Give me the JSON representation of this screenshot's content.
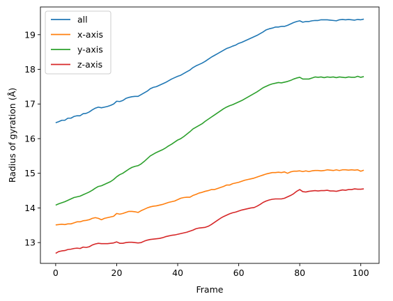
{
  "chart_data": {
    "type": "line",
    "xlabel": "Frame",
    "ylabel": "Radius of gyration (Å)",
    "xlim": [
      -5,
      106
    ],
    "ylim": [
      12.4,
      19.8
    ],
    "xticks": [
      0,
      20,
      40,
      60,
      80,
      100
    ],
    "yticks": [
      13,
      14,
      15,
      16,
      17,
      18,
      19
    ],
    "grid": false,
    "legend_position": "top-left",
    "x": [
      0,
      1,
      2,
      3,
      4,
      5,
      6,
      7,
      8,
      9,
      10,
      11,
      12,
      13,
      14,
      15,
      16,
      17,
      18,
      19,
      20,
      21,
      22,
      23,
      24,
      25,
      26,
      27,
      28,
      29,
      30,
      31,
      32,
      33,
      34,
      35,
      36,
      37,
      38,
      39,
      40,
      41,
      42,
      43,
      44,
      45,
      46,
      47,
      48,
      49,
      50,
      51,
      52,
      53,
      54,
      55,
      56,
      57,
      58,
      59,
      60,
      61,
      62,
      63,
      64,
      65,
      66,
      67,
      68,
      69,
      70,
      71,
      72,
      73,
      74,
      75,
      76,
      77,
      78,
      79,
      80,
      81,
      82,
      83,
      84,
      85,
      86,
      87,
      88,
      89,
      90,
      91,
      92,
      93,
      94,
      95,
      96,
      97,
      98,
      99,
      100,
      101
    ],
    "series": [
      {
        "name": "all",
        "color": "#1f77b4",
        "values": [
          16.46,
          16.49,
          16.53,
          16.53,
          16.59,
          16.59,
          16.64,
          16.66,
          16.66,
          16.72,
          16.73,
          16.77,
          16.83,
          16.88,
          16.91,
          16.89,
          16.91,
          16.93,
          16.96,
          17.0,
          17.08,
          17.07,
          17.1,
          17.16,
          17.19,
          17.21,
          17.22,
          17.22,
          17.27,
          17.32,
          17.37,
          17.44,
          17.48,
          17.5,
          17.54,
          17.58,
          17.62,
          17.67,
          17.72,
          17.76,
          17.8,
          17.83,
          17.88,
          17.93,
          17.98,
          18.05,
          18.1,
          18.14,
          18.18,
          18.23,
          18.29,
          18.35,
          18.4,
          18.45,
          18.5,
          18.55,
          18.6,
          18.63,
          18.67,
          18.7,
          18.75,
          18.78,
          18.82,
          18.86,
          18.9,
          18.94,
          18.98,
          19.03,
          19.08,
          19.14,
          19.17,
          19.19,
          19.22,
          19.22,
          19.24,
          19.24,
          19.27,
          19.31,
          19.35,
          19.38,
          19.4,
          19.36,
          19.38,
          19.38,
          19.4,
          19.41,
          19.41,
          19.43,
          19.43,
          19.43,
          19.42,
          19.41,
          19.4,
          19.43,
          19.44,
          19.43,
          19.44,
          19.43,
          19.42,
          19.44,
          19.43,
          19.45
        ]
      },
      {
        "name": "x-axis",
        "color": "#ff7f0e",
        "values": [
          13.51,
          13.52,
          13.53,
          13.52,
          13.54,
          13.54,
          13.57,
          13.6,
          13.6,
          13.63,
          13.64,
          13.66,
          13.7,
          13.72,
          13.7,
          13.66,
          13.7,
          13.72,
          13.74,
          13.76,
          13.84,
          13.82,
          13.84,
          13.87,
          13.9,
          13.9,
          13.89,
          13.87,
          13.92,
          13.96,
          14.0,
          14.03,
          14.05,
          14.06,
          14.08,
          14.1,
          14.13,
          14.16,
          14.18,
          14.2,
          14.24,
          14.28,
          14.3,
          14.31,
          14.31,
          14.36,
          14.39,
          14.43,
          14.45,
          14.48,
          14.5,
          14.53,
          14.53,
          14.56,
          14.59,
          14.62,
          14.66,
          14.66,
          14.7,
          14.72,
          14.74,
          14.77,
          14.8,
          14.82,
          14.84,
          14.86,
          14.89,
          14.92,
          14.95,
          14.98,
          15.0,
          15.02,
          15.02,
          15.03,
          15.02,
          15.04,
          15.0,
          15.04,
          15.06,
          15.06,
          15.07,
          15.05,
          15.07,
          15.05,
          15.07,
          15.08,
          15.08,
          15.07,
          15.08,
          15.1,
          15.09,
          15.08,
          15.1,
          15.08,
          15.1,
          15.1,
          15.09,
          15.1,
          15.09,
          15.1,
          15.06,
          15.09
        ]
      },
      {
        "name": "y-axis",
        "color": "#2ca02c",
        "values": [
          14.08,
          14.12,
          14.15,
          14.18,
          14.22,
          14.26,
          14.3,
          14.32,
          14.34,
          14.38,
          14.42,
          14.46,
          14.51,
          14.57,
          14.62,
          14.64,
          14.68,
          14.72,
          14.76,
          14.82,
          14.9,
          14.96,
          15.0,
          15.06,
          15.12,
          15.17,
          15.2,
          15.22,
          15.27,
          15.34,
          15.42,
          15.5,
          15.55,
          15.6,
          15.64,
          15.68,
          15.73,
          15.79,
          15.84,
          15.9,
          15.96,
          16.0,
          16.06,
          16.13,
          16.2,
          16.28,
          16.33,
          16.38,
          16.43,
          16.5,
          16.56,
          16.62,
          16.68,
          16.74,
          16.8,
          16.86,
          16.91,
          16.95,
          16.98,
          17.02,
          17.06,
          17.1,
          17.15,
          17.2,
          17.25,
          17.3,
          17.35,
          17.41,
          17.47,
          17.51,
          17.55,
          17.58,
          17.6,
          17.62,
          17.61,
          17.63,
          17.65,
          17.68,
          17.72,
          17.75,
          17.77,
          17.72,
          17.72,
          17.72,
          17.75,
          17.78,
          17.77,
          17.78,
          17.76,
          17.78,
          17.77,
          17.78,
          17.76,
          17.78,
          17.77,
          17.76,
          17.78,
          17.77,
          17.77,
          17.8,
          17.77,
          17.79
        ]
      },
      {
        "name": "z-axis",
        "color": "#d62728",
        "values": [
          12.69,
          12.74,
          12.76,
          12.77,
          12.8,
          12.81,
          12.83,
          12.84,
          12.83,
          12.87,
          12.86,
          12.88,
          12.93,
          12.96,
          12.98,
          12.97,
          12.97,
          12.97,
          12.98,
          12.99,
          13.02,
          12.98,
          12.98,
          13.0,
          13.01,
          13.01,
          13.0,
          12.99,
          13.0,
          13.04,
          13.07,
          13.09,
          13.1,
          13.11,
          13.12,
          13.14,
          13.17,
          13.19,
          13.21,
          13.22,
          13.24,
          13.26,
          13.28,
          13.3,
          13.33,
          13.36,
          13.4,
          13.42,
          13.43,
          13.44,
          13.47,
          13.52,
          13.58,
          13.64,
          13.7,
          13.75,
          13.79,
          13.83,
          13.86,
          13.88,
          13.91,
          13.94,
          13.96,
          13.98,
          14.0,
          14.01,
          14.05,
          14.1,
          14.16,
          14.2,
          14.23,
          14.25,
          14.26,
          14.26,
          14.26,
          14.28,
          14.32,
          14.36,
          14.41,
          14.48,
          14.53,
          14.47,
          14.46,
          14.48,
          14.49,
          14.5,
          14.49,
          14.5,
          14.5,
          14.51,
          14.49,
          14.49,
          14.48,
          14.5,
          14.52,
          14.51,
          14.53,
          14.53,
          14.55,
          14.54,
          14.54,
          14.55
        ]
      }
    ]
  }
}
